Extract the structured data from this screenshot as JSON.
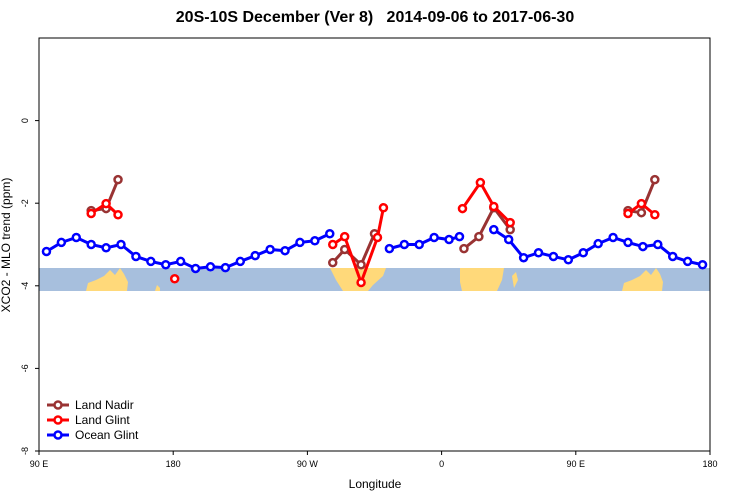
{
  "chart_data": {
    "type": "line",
    "title": "20S-10S December (Ver 8)   2014-09-06 to 2017-06-30",
    "xlabel": "Longitude",
    "ylabel": "XCO2 - MLO trend (ppm)",
    "xlim": [
      90,
      540
    ],
    "ylim": [
      -8,
      2
    ],
    "xticks": [
      {
        "value": 90,
        "label": "90 E"
      },
      {
        "value": 180,
        "label": "180"
      },
      {
        "value": 270,
        "label": "90 W"
      },
      {
        "value": 360,
        "label": "0"
      },
      {
        "value": 450,
        "label": "90 E"
      },
      {
        "value": 540,
        "label": "180"
      }
    ],
    "yticks": [
      0,
      -2,
      -4,
      -6,
      -8
    ],
    "legend": "lower left",
    "series": [
      {
        "name": "Land Nadir",
        "color": "#993333",
        "x": [
          125,
          135,
          143,
          null,
          287,
          295,
          306,
          315,
          null,
          375,
          385,
          395,
          406,
          null,
          485,
          494,
          503
        ],
        "values": [
          -2.18,
          -2.13,
          -1.43,
          null,
          -3.44,
          -3.12,
          -3.49,
          -2.74,
          null,
          -3.1,
          -2.81,
          -2.11,
          -2.64,
          null,
          -2.18,
          -2.23,
          -1.43
        ]
      },
      {
        "name": "Land Glint",
        "color": "#ff0000",
        "x": [
          125,
          135,
          143,
          null,
          181,
          null,
          287,
          295,
          306,
          317,
          321,
          null,
          374,
          386,
          395,
          406,
          null,
          485,
          494,
          503
        ],
        "values": [
          -2.25,
          -2.01,
          -2.28,
          null,
          -3.83,
          null,
          -3.0,
          -2.81,
          -3.92,
          -2.83,
          -2.11,
          null,
          -2.13,
          -1.5,
          -2.08,
          -2.47,
          null,
          -2.25,
          -2.01,
          -2.28
        ]
      },
      {
        "name": "Ocean Glint",
        "color": "#0000ff",
        "x": [
          95,
          105,
          115,
          125,
          135,
          145,
          155,
          165,
          175,
          185,
          195,
          205,
          215,
          225,
          235,
          245,
          255,
          265,
          275,
          285,
          null,
          325,
          335,
          345,
          355,
          365,
          372,
          null,
          395,
          405,
          415,
          425,
          435,
          445,
          455,
          465,
          475,
          485,
          495,
          505,
          515,
          525,
          535
        ],
        "values": [
          -3.17,
          -2.95,
          -2.83,
          -3.0,
          -3.08,
          -3.0,
          -3.29,
          -3.41,
          -3.49,
          -3.41,
          -3.58,
          -3.54,
          -3.56,
          -3.41,
          -3.27,
          -3.12,
          -3.15,
          -2.95,
          -2.91,
          -2.74,
          null,
          -3.1,
          -3.0,
          -3.0,
          -2.83,
          -2.88,
          -2.81,
          null,
          -2.64,
          -2.88,
          -3.32,
          -3.2,
          -3.29,
          -3.37,
          -3.2,
          -2.98,
          -2.83,
          -2.95,
          -3.05,
          -3.0,
          -3.29,
          -3.41,
          -3.49
        ]
      }
    ]
  }
}
